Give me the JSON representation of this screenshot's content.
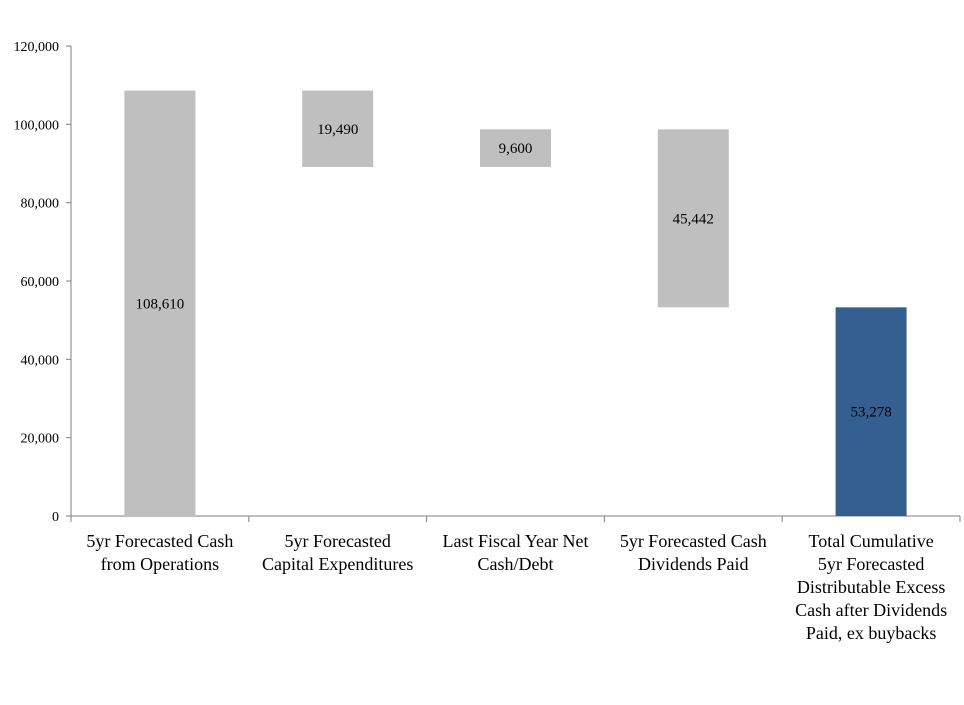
{
  "chart_data": {
    "type": "bar",
    "subtype": "waterfall",
    "categories": [
      [
        "5yr Forecasted Cash",
        "from Operations"
      ],
      [
        "5yr Forecasted",
        "Capital Expenditures"
      ],
      [
        "Last Fiscal Year Net",
        "Cash/Debt"
      ],
      [
        "5yr Forecasted Cash",
        "Dividends Paid"
      ],
      [
        "Total Cumulative",
        "5yr Forecasted",
        "Distributable Excess",
        "Cash after Dividends",
        "Paid, ex buybacks"
      ]
    ],
    "bars": [
      {
        "base": 0,
        "top": 108610,
        "label": "108,610",
        "color": "#bfbfbf"
      },
      {
        "base": 89120,
        "top": 108610,
        "label": "19,490",
        "color": "#bfbfbf"
      },
      {
        "base": 89120,
        "top": 98720,
        "label": "9,600",
        "color": "#bfbfbf"
      },
      {
        "base": 53278,
        "top": 98720,
        "label": "45,442",
        "color": "#bfbfbf"
      },
      {
        "base": 0,
        "top": 53278,
        "label": "53,278",
        "color": "#365f91"
      }
    ],
    "ylim": [
      0,
      120000
    ],
    "yticks": [
      0,
      20000,
      40000,
      60000,
      80000,
      100000,
      120000
    ],
    "ytick_labels": [
      "0",
      "20,000",
      "40,000",
      "60,000",
      "80,000",
      "100,000",
      "120,000"
    ],
    "grid": false,
    "legend": "none",
    "title": "",
    "xlabel": "",
    "ylabel": ""
  }
}
